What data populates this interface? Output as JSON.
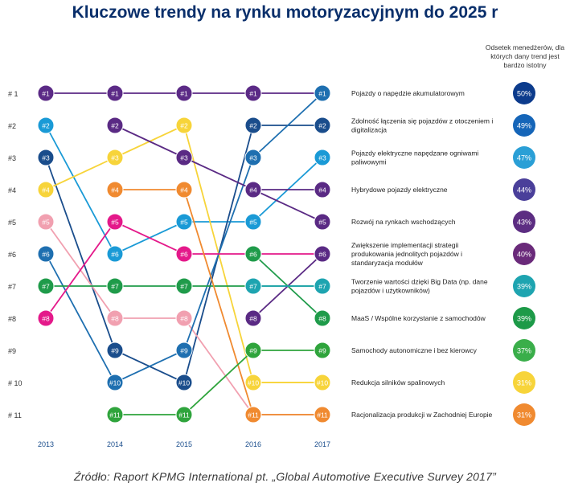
{
  "chart_data": {
    "type": "line",
    "title": "Kluczowe trendy na rynku motoryzacyjnym do 2025 r",
    "xlabel": "",
    "ylabel": "",
    "x": [
      "2013",
      "2014",
      "2015",
      "2016",
      "2017"
    ],
    "rank_labels": [
      "# 1",
      "#2",
      "#3",
      "#4",
      "#5",
      "#6",
      "#7",
      "#8",
      "#9",
      "# 10",
      "# 11"
    ],
    "stat_header": "Odsetek menedżerów, dla których dany trend jest bardzo istotny",
    "series": [
      {
        "name": "Pojazdy o napędzie akumulatorowym",
        "ranks": [
          1,
          1,
          1,
          1,
          1
        ],
        "color": "#5b2a86",
        "share": "50%",
        "share_color": "#0c3b8c"
      },
      {
        "name": "Zdolność łączenia się pojazdów z otoczeniem i digitalizacja",
        "ranks": [
          2,
          6,
          5,
          5,
          3
        ],
        "color": "#1a9ad6",
        "share": "49%",
        "share_color": "#1565b8"
      },
      {
        "name": "Pojazdy elektryczne napędzane ogniwami paliwowymi",
        "ranks": [
          3,
          9,
          10,
          2,
          2
        ],
        "color": "#1a4d8c",
        "share": "47%",
        "share_color": "#2a9fd6"
      },
      {
        "name": "Hybrydowe pojazdy elektryczne",
        "ranks": [
          4,
          3,
          2,
          10,
          10
        ],
        "color": "#f7d43a",
        "share": "44%",
        "share_color": "#4a3f9a"
      },
      {
        "name": "Rozwój na rynkach wschodzących",
        "ranks": [
          5,
          8,
          8,
          11,
          11
        ],
        "color": "#f1a0b0",
        "share": "43%",
        "share_color": "#5c2d82"
      },
      {
        "name": "Zwiększenie implementacji strategii produkowania jednolitych pojazdów i standaryzacja modułów",
        "ranks": [
          6,
          10,
          9,
          3,
          1
        ],
        "color": "#1e6fb0",
        "share": "40%",
        "share_color": "#6a2a7a"
      },
      {
        "name": "Tworzenie wartości dzięki Big Data (np. dane pojazdów i użytkowników)",
        "ranks": [
          7,
          7,
          7,
          7,
          7
        ],
        "color": "#1f9b4a",
        "share": "39%",
        "share_color": "#1ea4b0"
      },
      {
        "name": "MaaS / Wspólne korzystanie z samochodów",
        "ranks": [
          8,
          5,
          6,
          6,
          6
        ],
        "color": "#e4198a",
        "share": "39%",
        "share_color": "#1d9a48"
      },
      {
        "name": "Samochody autonomiczne i bez kierowcy",
        "ranks": [
          null,
          2,
          3,
          4,
          4
        ],
        "color": "#5a2a84",
        "share": "37%",
        "share_color": "#3aae4a"
      },
      {
        "name": "Redukcja silników spalinowych",
        "ranks": [
          null,
          4,
          4,
          11,
          11
        ],
        "color": "#f08a30",
        "share": "31%",
        "share_color": "#f7d43a"
      },
      {
        "name": "Racjonalizacja produkcji w Zachodniej Europie",
        "ranks": [
          null,
          11,
          11,
          9,
          9
        ],
        "color": "#2fa43c",
        "share": "31%",
        "share_color": "#f08a30"
      },
      {
        "name": "",
        "ranks": [
          null,
          null,
          null,
          4,
          5
        ],
        "color": "#5a2a84",
        "share": "",
        "share_color": ""
      },
      {
        "name": "",
        "ranks": [
          null,
          null,
          null,
          8,
          6
        ],
        "color": "#5a2a84",
        "share": "",
        "share_color": ""
      },
      {
        "name": "",
        "ranks": [
          null,
          null,
          null,
          6,
          8
        ],
        "color": "#1f9b4a",
        "share": "",
        "share_color": ""
      },
      {
        "name": "",
        "ranks": [
          null,
          null,
          null,
          10,
          10
        ],
        "color": "#f7d43a",
        "share": "",
        "share_color": ""
      },
      {
        "name": "",
        "ranks": [
          null,
          null,
          null,
          7,
          7
        ],
        "color": "#1ea4b0",
        "share": "",
        "share_color": ""
      }
    ]
  },
  "source_note": "Źródło: Raport KPMG International pt. „Global Automotive Executive Survey 2017”"
}
